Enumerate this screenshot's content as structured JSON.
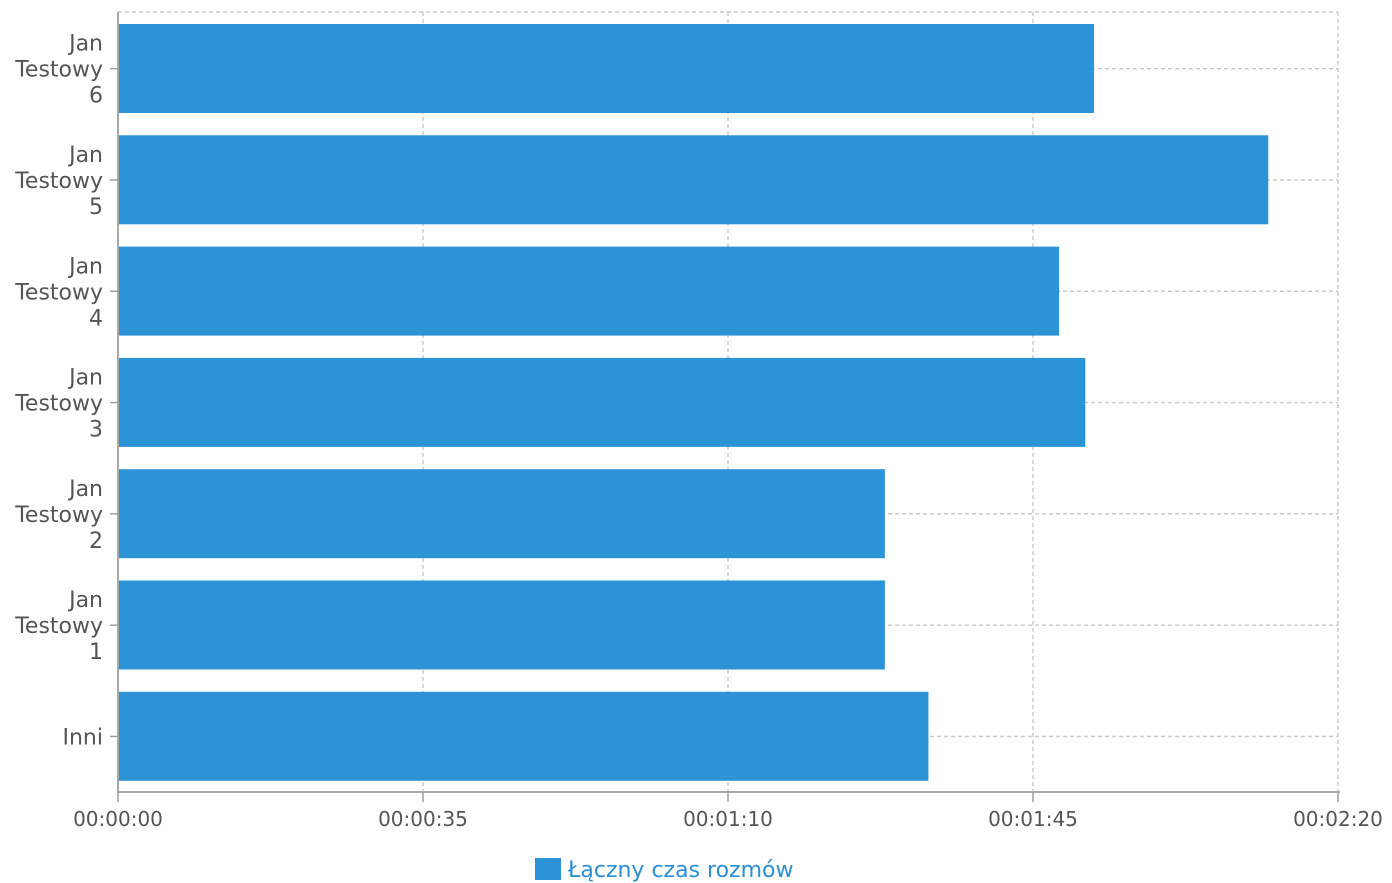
{
  "chart_data": {
    "type": "bar",
    "orientation": "horizontal",
    "categories": [
      [
        "Jan",
        "Testowy",
        "6"
      ],
      [
        "Jan",
        "Testowy",
        "5"
      ],
      [
        "Jan",
        "Testowy",
        "4"
      ],
      [
        "Jan",
        "Testowy",
        "3"
      ],
      [
        "Jan",
        "Testowy",
        "2"
      ],
      [
        "Jan",
        "Testowy",
        "1"
      ],
      [
        "Inni"
      ]
    ],
    "series": [
      {
        "name": "Łączny czas rozmów",
        "color": "#2b93d6",
        "values_seconds": [
          112,
          132,
          108,
          111,
          88,
          88,
          93
        ]
      }
    ],
    "x_ticks": [
      "00:00:00",
      "00:00:35",
      "00:01:10",
      "00:01:45",
      "00:02:20"
    ],
    "x_tick_values_seconds": [
      0,
      35,
      70,
      105,
      140
    ],
    "xlim_seconds": [
      0,
      140
    ],
    "grid": true,
    "legend_position": "bottom-center"
  }
}
